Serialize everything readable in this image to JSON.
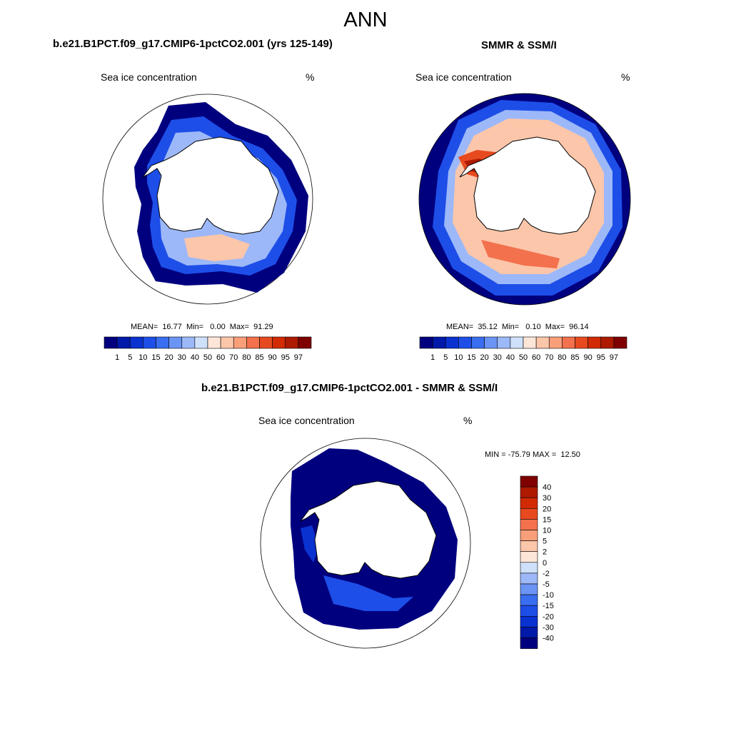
{
  "title": "ANN",
  "panels": [
    {
      "id": "model",
      "title": "b.e21.B1PCT.f09_g17.CMIP6-1pctCO2.001 (yrs 125-149)",
      "variable": "Sea ice concentration",
      "units": "%",
      "stats_text": "MEAN=  16.77  Min=   0.00  Max=  91.29"
    },
    {
      "id": "obs",
      "title": "SMMR & SSM/I",
      "variable": "Sea ice concentration",
      "units": "%",
      "stats_text": "MEAN=  35.12  Min=   0.10  Max=  96.14"
    }
  ],
  "diff_panel": {
    "title": "b.e21.B1PCT.f09_g17.CMIP6-1pctCO2.001 - SMMR & SSM/I",
    "variable": "Sea ice concentration",
    "units": "%",
    "minmax_text": "MIN = -75.79 MAX =  12.50"
  },
  "colorbar_main": {
    "labels": [
      "1",
      "5",
      "10",
      "15",
      "20",
      "30",
      "40",
      "50",
      "60",
      "70",
      "80",
      "85",
      "90",
      "95",
      "97"
    ],
    "colors": [
      "#00007f",
      "#0019a8",
      "#0a32d0",
      "#1e4ee8",
      "#3a6ef0",
      "#6b94f5",
      "#9cb8f8",
      "#cfe0fb",
      "#fde6d8",
      "#fcc6aa",
      "#f89f7a",
      "#f3714d",
      "#e84a20",
      "#d12a05",
      "#ad1a00",
      "#7f0000"
    ]
  },
  "colorbar_diff": {
    "labels": [
      "40",
      "30",
      "20",
      "15",
      "10",
      "5",
      "2",
      "0",
      "-2",
      "-5",
      "-10",
      "-15",
      "-20",
      "-30",
      "-40"
    ],
    "colors": [
      "#7f0000",
      "#ad1a00",
      "#d12a05",
      "#e84a20",
      "#f3714d",
      "#f89f7a",
      "#fcc6aa",
      "#fde6d8",
      "#cfe0fb",
      "#9cb8f8",
      "#6b94f5",
      "#3a6ef0",
      "#1e4ee8",
      "#0a32d0",
      "#0019a8",
      "#00007f"
    ]
  },
  "colors": {
    "high_conc": "#cf2a0a",
    "low_conc": "#00007f",
    "land": "#ffffff",
    "coast": "#000000"
  }
}
